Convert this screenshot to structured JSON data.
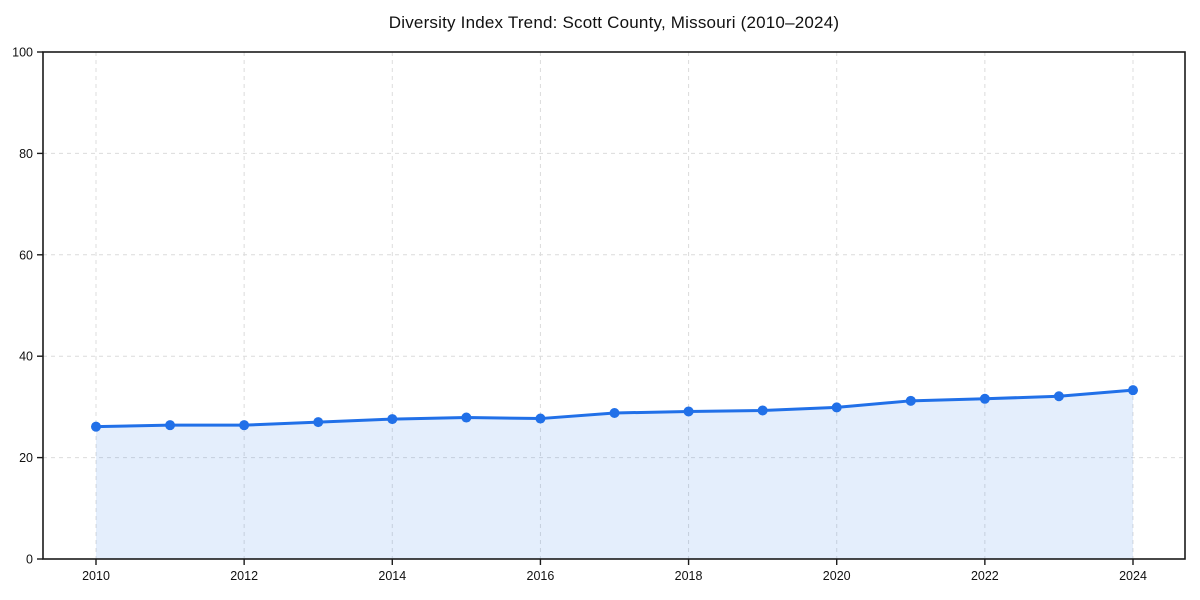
{
  "chart_data": {
    "type": "line",
    "title": "Diversity Index Trend: Scott County, Missouri (2010–2024)",
    "xlabel": "",
    "ylabel": "",
    "x": [
      2010,
      2011,
      2012,
      2013,
      2014,
      2015,
      2016,
      2017,
      2018,
      2019,
      2020,
      2021,
      2022,
      2023,
      2024
    ],
    "series": [
      {
        "name": "Diversity Index",
        "values": [
          26.1,
          26.4,
          26.4,
          27.0,
          27.6,
          27.9,
          27.7,
          28.8,
          29.1,
          29.3,
          29.9,
          31.2,
          31.6,
          32.1,
          33.3
        ]
      }
    ],
    "xticks": [
      2010,
      2012,
      2014,
      2016,
      2018,
      2020,
      2022,
      2024
    ],
    "yticks": [
      0,
      20,
      40,
      60,
      80,
      100
    ],
    "ylim": [
      0,
      100
    ],
    "grid": true,
    "grid_style": "dashed",
    "legend": null,
    "area_fill": true,
    "colors": {
      "line": "#2170e8",
      "marker": "#2170e8",
      "fill": "rgba(33, 112, 232, 0.12)",
      "grid": "#dcdcdc",
      "spine": "#1a1a1a",
      "text": "#111111",
      "background": "#ffffff"
    }
  }
}
